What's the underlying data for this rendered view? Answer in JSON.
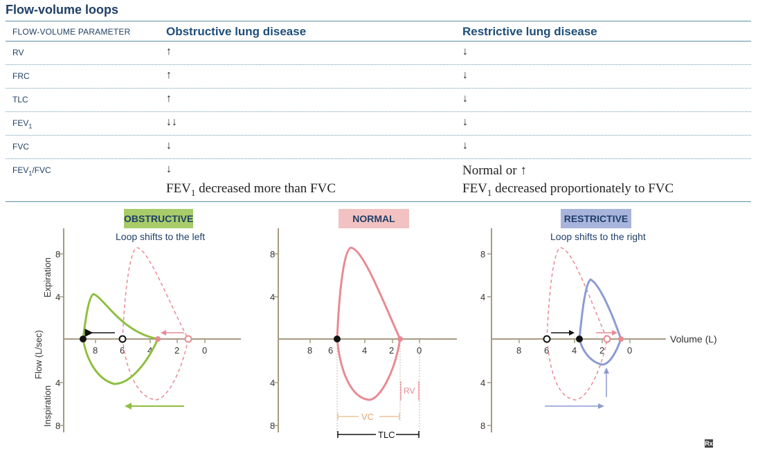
{
  "title": "Flow-volume loops",
  "table": {
    "header_param": "FLOW-VOLUME PARAMETER",
    "header_obstructive": "Obstructive lung disease",
    "header_restrictive": "Restrictive lung disease",
    "rows": [
      {
        "param": "RV",
        "obstructive": "↑",
        "restrictive": "↓"
      },
      {
        "param": "FRC",
        "obstructive": "↑",
        "restrictive": "↓"
      },
      {
        "param": "TLC",
        "obstructive": "↑",
        "restrictive": "↓"
      },
      {
        "param": "FEV",
        "param_sub": "1",
        "obstructive": "↓↓",
        "restrictive": "↓"
      },
      {
        "param": "FVC",
        "obstructive": "↓",
        "restrictive": "↓"
      },
      {
        "param": "FEV",
        "param_sub": "1",
        "param_tail": "/FVC",
        "obstructive": "↓",
        "restrictive": "Normal or ↑",
        "obstructive_note_a": "FEV",
        "obstructive_note_sub": "1",
        "obstructive_note_b": " decreased more than FVC",
        "restrictive_note_a": "FEV",
        "restrictive_note_sub": "1",
        "restrictive_note_b": " decreased proportionately to FVC"
      }
    ]
  },
  "panels": {
    "obstructive": {
      "label": "OBSTRUCTIVE",
      "subtitle": "Loop shifts to the left",
      "color": "#8fbf3f"
    },
    "normal": {
      "label": "NORMAL",
      "color": "#e88a94"
    },
    "restrictive": {
      "label": "RESTRICTIVE",
      "subtitle": "Loop shifts to the right",
      "color": "#8c9bd2"
    }
  },
  "axes": {
    "y_label": "Flow (L/sec)",
    "expiration": "Expiration",
    "inspiration": "Inspiration",
    "x_label": "Volume (L)",
    "x_ticks": [
      "8",
      "6",
      "4",
      "2",
      "0"
    ],
    "y_ticks_top": [
      "8",
      "4"
    ],
    "y_ticks_bottom": [
      "4",
      "8"
    ]
  },
  "annotations": {
    "vc": "VC",
    "rv": "RV",
    "tlc": "TLC"
  },
  "logo": "Rx",
  "colors": {
    "normal_loop": "#e88a94",
    "obstructive_loop": "#8fbf3f",
    "restrictive_loop": "#8c9bd2",
    "axis": "#a69a82",
    "text": "#1f3f66"
  }
}
